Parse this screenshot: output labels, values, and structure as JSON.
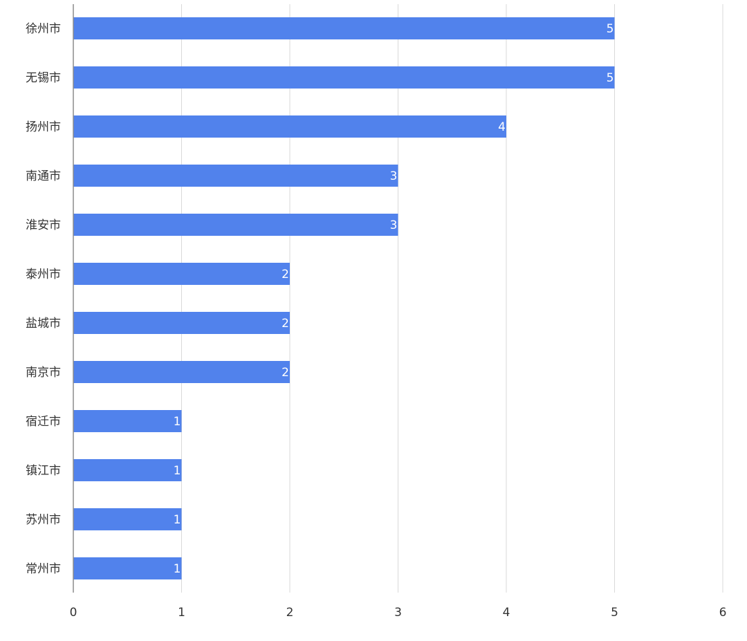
{
  "chart_data": {
    "type": "bar",
    "orientation": "horizontal",
    "title": "",
    "xlabel": "",
    "ylabel": "",
    "categories": [
      "徐州市",
      "无锡市",
      "扬州市",
      "南通市",
      "淮安市",
      "泰州市",
      "盐城市",
      "南京市",
      "宿迁市",
      "镇江市",
      "苏州市",
      "常州市"
    ],
    "values": [
      5,
      5,
      4,
      3,
      3,
      2,
      2,
      2,
      1,
      1,
      1,
      1
    ],
    "xlim": [
      0,
      6
    ],
    "x_ticks": [
      0,
      1,
      2,
      3,
      4,
      5,
      6
    ],
    "grid": true,
    "legend": "none",
    "bar_color": "#5182ec",
    "data_labels": true
  }
}
